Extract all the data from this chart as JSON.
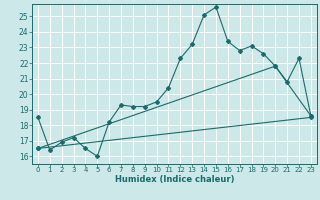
{
  "xlabel": "Humidex (Indice chaleur)",
  "ylabel": "",
  "bg_color": "#cce8e8",
  "grid_color": "#b0d4d4",
  "line_color": "#1a6b6b",
  "xlim": [
    -0.5,
    23.5
  ],
  "ylim": [
    15.5,
    25.8
  ],
  "xticks": [
    0,
    1,
    2,
    3,
    4,
    5,
    6,
    7,
    8,
    9,
    10,
    11,
    12,
    13,
    14,
    15,
    16,
    17,
    18,
    19,
    20,
    21,
    22,
    23
  ],
  "yticks": [
    16,
    17,
    18,
    19,
    20,
    21,
    22,
    23,
    24,
    25
  ],
  "line1_x": [
    0,
    1,
    2,
    3,
    4,
    5,
    6,
    7,
    8,
    9,
    10,
    11,
    12,
    13,
    14,
    15,
    16,
    17,
    18,
    19,
    20,
    21,
    22,
    23
  ],
  "line1_y": [
    18.5,
    16.4,
    16.9,
    17.2,
    16.5,
    16.0,
    18.2,
    19.3,
    19.2,
    19.2,
    19.5,
    20.4,
    22.3,
    23.2,
    25.1,
    25.6,
    23.4,
    22.8,
    23.1,
    22.6,
    21.8,
    20.8,
    22.3,
    18.6
  ],
  "line2_x": [
    0,
    23
  ],
  "line2_y": [
    16.5,
    18.5
  ],
  "line3_x": [
    0,
    20,
    23
  ],
  "line3_y": [
    16.5,
    21.8,
    18.6
  ]
}
